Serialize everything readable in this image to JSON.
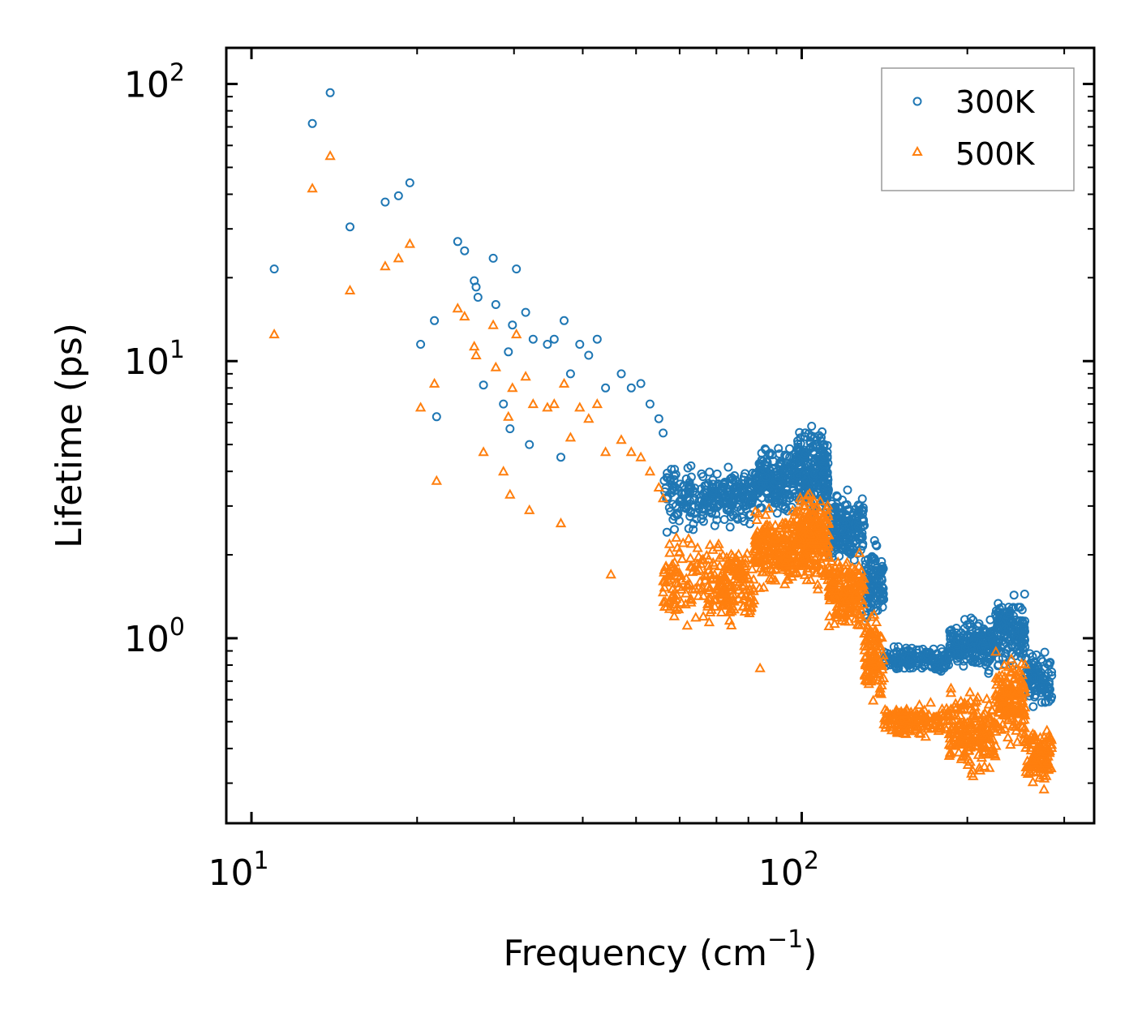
{
  "chart_data": {
    "type": "scatter",
    "xscale": "log",
    "yscale": "log",
    "xlabel": "Frequency (cm",
    "xlabel_sup": "−1",
    "xlabel_close": ")",
    "ylabel": "Lifetime (ps)",
    "xlim": [
      9,
      340
    ],
    "ylim": [
      0.215,
      135
    ],
    "xticks": [
      {
        "base": "10",
        "exp": "1",
        "value": 10
      },
      {
        "base": "10",
        "exp": "2",
        "value": 100
      }
    ],
    "yticks": [
      {
        "base": "10",
        "exp": "0",
        "value": 1
      },
      {
        "base": "10",
        "exp": "1",
        "value": 10
      },
      {
        "base": "10",
        "exp": "2",
        "value": 100
      }
    ],
    "legend_position": "top-right",
    "series": [
      {
        "name": "300K",
        "marker": "circle",
        "color": "#1f77b4",
        "points": [
          [
            11.0,
            21.5
          ],
          [
            12.9,
            72
          ],
          [
            13.9,
            93
          ],
          [
            15.1,
            30.5
          ],
          [
            17.5,
            37.5
          ],
          [
            18.5,
            39.5
          ],
          [
            19.4,
            44
          ],
          [
            20.3,
            11.5
          ],
          [
            21.5,
            14
          ],
          [
            21.7,
            6.3
          ],
          [
            23.7,
            27
          ],
          [
            24.4,
            25
          ],
          [
            25.4,
            19.5
          ],
          [
            25.6,
            18.5
          ],
          [
            25.8,
            17
          ],
          [
            26.4,
            8.2
          ],
          [
            27.5,
            23.5
          ],
          [
            27.8,
            16
          ],
          [
            28.7,
            7
          ],
          [
            29.3,
            10.8
          ],
          [
            29.5,
            5.7
          ],
          [
            29.8,
            13.5
          ],
          [
            30.3,
            21.5
          ],
          [
            31.5,
            15
          ],
          [
            32.0,
            5
          ],
          [
            32.5,
            12
          ],
          [
            34.5,
            11.5
          ],
          [
            35.5,
            12
          ],
          [
            36.5,
            4.5
          ],
          [
            37.0,
            14
          ],
          [
            38.0,
            9
          ],
          [
            39.5,
            11.5
          ],
          [
            41.0,
            10.5
          ],
          [
            42.5,
            12
          ],
          [
            44.0,
            8
          ],
          [
            47.0,
            9
          ],
          [
            49.0,
            8
          ],
          [
            51.0,
            8.3
          ],
          [
            53.0,
            7
          ],
          [
            55.0,
            6.2
          ],
          [
            56.0,
            5.5
          ]
        ],
        "bands": [
          {
            "x0": 56,
            "x1": 66,
            "lo": 2.2,
            "hi": 4.6,
            "n": 90
          },
          {
            "x0": 66,
            "x1": 82,
            "lo": 2.4,
            "hi": 4.4,
            "n": 170
          },
          {
            "x0": 82,
            "x1": 98,
            "lo": 2.7,
            "hi": 5.2,
            "n": 210
          },
          {
            "x0": 98,
            "x1": 112,
            "lo": 2.5,
            "hi": 6.2,
            "n": 230
          },
          {
            "x0": 112,
            "x1": 130,
            "lo": 1.7,
            "hi": 3.6,
            "n": 180
          },
          {
            "x0": 130,
            "x1": 141,
            "lo": 1.05,
            "hi": 2.4,
            "n": 110
          },
          {
            "x0": 141,
            "x1": 185,
            "lo": 0.73,
            "hi": 0.97,
            "n": 160
          },
          {
            "x0": 185,
            "x1": 225,
            "lo": 0.72,
            "hi": 1.25,
            "n": 190
          },
          {
            "x0": 225,
            "x1": 255,
            "lo": 0.72,
            "hi": 1.55,
            "n": 160
          },
          {
            "x0": 255,
            "x1": 285,
            "lo": 0.52,
            "hi": 0.95,
            "n": 110
          }
        ]
      },
      {
        "name": "500K",
        "marker": "triangle",
        "color": "#ff7f0e",
        "points": [
          [
            11.0,
            12.5
          ],
          [
            12.9,
            42
          ],
          [
            13.9,
            55
          ],
          [
            15.1,
            18
          ],
          [
            17.5,
            22
          ],
          [
            18.5,
            23.5
          ],
          [
            19.4,
            26.5
          ],
          [
            20.3,
            6.8
          ],
          [
            21.5,
            8.3
          ],
          [
            21.7,
            3.7
          ],
          [
            23.7,
            15.5
          ],
          [
            24.4,
            14.5
          ],
          [
            25.4,
            11.3
          ],
          [
            25.6,
            10.5
          ],
          [
            26.4,
            4.7
          ],
          [
            27.5,
            13.5
          ],
          [
            27.8,
            9.5
          ],
          [
            28.7,
            4
          ],
          [
            29.3,
            6.3
          ],
          [
            29.5,
            3.3
          ],
          [
            29.8,
            8
          ],
          [
            30.3,
            12.5
          ],
          [
            31.5,
            8.8
          ],
          [
            32.0,
            2.9
          ],
          [
            32.5,
            7
          ],
          [
            34.5,
            6.8
          ],
          [
            35.5,
            7
          ],
          [
            36.5,
            2.6
          ],
          [
            37.0,
            8.3
          ],
          [
            38.0,
            5.3
          ],
          [
            39.5,
            6.8
          ],
          [
            41.0,
            6.2
          ],
          [
            42.5,
            7
          ],
          [
            44.0,
            4.7
          ],
          [
            45.0,
            1.7
          ],
          [
            47.0,
            5.2
          ],
          [
            49.0,
            4.7
          ],
          [
            51.0,
            4.5
          ],
          [
            53.0,
            4
          ],
          [
            55.0,
            3.5
          ],
          [
            56.0,
            3.2
          ],
          [
            84.0,
            0.78
          ]
        ],
        "bands": [
          {
            "x0": 56,
            "x1": 66,
            "lo": 1.05,
            "hi": 2.6,
            "n": 90
          },
          {
            "x0": 66,
            "x1": 82,
            "lo": 1.0,
            "hi": 2.5,
            "n": 170
          },
          {
            "x0": 82,
            "x1": 98,
            "lo": 1.4,
            "hi": 3.1,
            "n": 210
          },
          {
            "x0": 98,
            "x1": 112,
            "lo": 1.4,
            "hi": 3.8,
            "n": 230
          },
          {
            "x0": 112,
            "x1": 130,
            "lo": 0.95,
            "hi": 2.2,
            "n": 180
          },
          {
            "x0": 130,
            "x1": 141,
            "lo": 0.55,
            "hi": 1.3,
            "n": 110
          },
          {
            "x0": 141,
            "x1": 185,
            "lo": 0.42,
            "hi": 0.6,
            "n": 160
          },
          {
            "x0": 185,
            "x1": 225,
            "lo": 0.3,
            "hi": 0.7,
            "n": 190
          },
          {
            "x0": 225,
            "x1": 255,
            "lo": 0.38,
            "hi": 0.95,
            "n": 160
          },
          {
            "x0": 255,
            "x1": 285,
            "lo": 0.28,
            "hi": 0.5,
            "n": 110
          }
        ]
      }
    ]
  }
}
